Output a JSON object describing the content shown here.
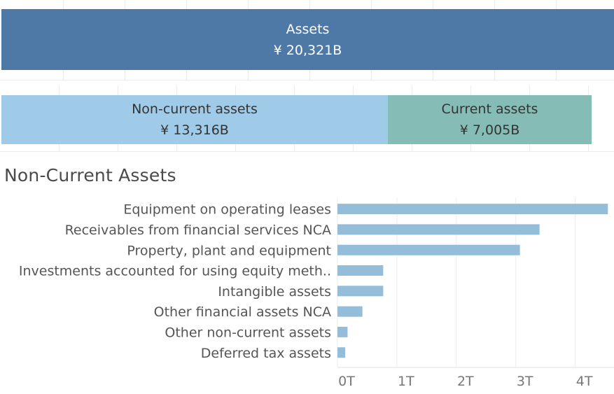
{
  "summary": {
    "assets": {
      "label": "Assets",
      "value": "¥ 20,321B",
      "color": "#4e79a7"
    },
    "non_current": {
      "label": "Non-current assets",
      "value": "¥ 13,316B",
      "color": "#a0cbe8"
    },
    "current": {
      "label": "Current assets",
      "value": "¥ 7,005B",
      "color": "#86bcb6"
    }
  },
  "section_title": "Non-Current Assets",
  "chart_data": {
    "type": "bar",
    "orientation": "horizontal",
    "categories": [
      "Equipment on operating leases",
      "Receivables from financial services NCA",
      "Property, plant and equipment",
      "Investments accounted for using equity meth..",
      "Intangible assets",
      "Other financial assets NCA",
      "Other non-current assets",
      "Deferred tax assets"
    ],
    "values": [
      4.55,
      3.4,
      3.07,
      0.77,
      0.77,
      0.42,
      0.17,
      0.13
    ],
    "unit": "T",
    "xlim": [
      0,
      4.6
    ],
    "xticks": [
      "0T",
      "1T",
      "2T",
      "3T",
      "4T"
    ],
    "bar_color": "#94bdd9",
    "grid": true
  }
}
